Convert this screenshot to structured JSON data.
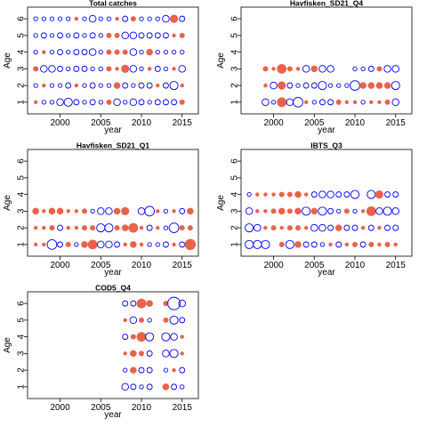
{
  "chart_data": [
    {
      "type": "scatter",
      "title": "Total catches",
      "xlabel": "year",
      "ylabel": "Age",
      "xlim": [
        1996,
        2017
      ],
      "ylim": [
        0.3,
        6.7
      ],
      "xticks": [
        2000,
        2005,
        2010,
        2015
      ],
      "yticks": [
        1,
        2,
        3,
        4,
        5,
        6
      ],
      "years": [
        1997,
        1998,
        1999,
        2000,
        2001,
        2002,
        2003,
        2004,
        2005,
        2006,
        2007,
        2008,
        2009,
        2010,
        2011,
        2012,
        2013,
        2014,
        2015
      ],
      "rows": [
        {
          "age": 1,
          "r": [
            -2,
            2,
            2,
            4,
            5,
            3,
            2,
            3,
            2,
            -3,
            4,
            2,
            4,
            3,
            2,
            3,
            3,
            3,
            -3
          ]
        },
        {
          "age": 2,
          "r": [
            2,
            -2,
            2,
            2,
            3,
            -2,
            2,
            3,
            2,
            2,
            -4,
            3,
            2,
            3,
            3,
            -2,
            3,
            5,
            -2
          ]
        },
        {
          "age": 3,
          "r": [
            -3,
            4,
            4,
            3,
            2,
            3,
            3,
            2,
            2,
            -3,
            -2,
            -5,
            4,
            2,
            -2,
            3,
            2,
            -2,
            4
          ]
        },
        {
          "age": 4,
          "r": [
            2,
            -2,
            2,
            3,
            2,
            3,
            3,
            4,
            2,
            -3,
            -3,
            -3,
            4,
            2,
            -4,
            2,
            2,
            2,
            2
          ]
        },
        {
          "age": 5,
          "r": [
            2,
            3,
            2,
            3,
            2,
            3,
            2,
            3,
            2,
            -3,
            -3,
            4,
            4,
            3,
            3,
            3,
            3,
            -2,
            -3
          ]
        },
        {
          "age": 6,
          "r": [
            2,
            2,
            2,
            2,
            2,
            -2,
            2,
            4,
            2,
            2,
            -2,
            3,
            -3,
            2,
            2,
            2,
            4,
            -5,
            3
          ]
        }
      ]
    },
    {
      "type": "scatter",
      "title": "Havfisken_SD21_Q4",
      "xlabel": "year",
      "ylabel": "Age",
      "xlim": [
        1996,
        2017
      ],
      "ylim": [
        0.3,
        6.7
      ],
      "xticks": [
        2000,
        2005,
        2010,
        2015
      ],
      "yticks": [
        1,
        2,
        3,
        4,
        5,
        6
      ],
      "years": [
        1999,
        2000,
        2001,
        2002,
        2003,
        2004,
        2005,
        2006,
        2007,
        2008,
        2009,
        2010,
        2011,
        2012,
        2013,
        2014,
        2015
      ],
      "rows": [
        {
          "age": 1,
          "r": [
            4,
            2,
            -6,
            4,
            6,
            -2,
            2,
            3,
            3,
            -3,
            -2,
            -2,
            2,
            -2,
            -2,
            -3,
            4
          ]
        },
        {
          "age": 2,
          "r": [
            -2,
            4,
            -5,
            3,
            2,
            3,
            3,
            5,
            2,
            2,
            2,
            6,
            -4,
            -4,
            -4,
            -4,
            5
          ]
        },
        {
          "age": 3,
          "r": [
            -3,
            -2,
            -6,
            -3,
            -2,
            4,
            -4,
            4,
            4,
            0,
            0,
            2,
            2,
            3,
            -3,
            4,
            4
          ]
        }
      ]
    },
    {
      "type": "scatter",
      "title": "Havfisken_SD21_Q1",
      "xlabel": "year",
      "ylabel": "Age",
      "xlim": [
        1996,
        2017
      ],
      "ylim": [
        0.3,
        6.7
      ],
      "xticks": [
        2000,
        2005,
        2010,
        2015
      ],
      "yticks": [
        1,
        2,
        3,
        4,
        5,
        6
      ],
      "years": [
        1997,
        1998,
        1999,
        2000,
        2001,
        2002,
        2003,
        2004,
        2005,
        2006,
        2007,
        2008,
        2009,
        2010,
        2011,
        2012,
        2013,
        2014,
        2015,
        2016
      ],
      "rows": [
        {
          "age": 1,
          "r": [
            -2,
            -2,
            6,
            3,
            -3,
            2,
            -4,
            -6,
            4,
            4,
            3,
            -2,
            -4,
            -2,
            2,
            2,
            3,
            -2,
            3,
            -7
          ]
        },
        {
          "age": 2,
          "r": [
            -2,
            -2,
            -3,
            3,
            -2,
            -2,
            -3,
            -3,
            5,
            5,
            -3,
            -4,
            -6,
            -2,
            3,
            -2,
            2,
            6,
            -3,
            -3
          ]
        },
        {
          "age": 3,
          "r": [
            -4,
            -2,
            -4,
            -4,
            -2,
            -2,
            -3,
            2,
            4,
            4,
            -4,
            -5,
            0,
            4,
            6,
            -2,
            2,
            -2,
            3,
            -4
          ]
        }
      ]
    },
    {
      "type": "scatter",
      "title": "IBTS_Q3",
      "xlabel": "year",
      "ylabel": "Age",
      "xlim": [
        1996,
        2017
      ],
      "ylim": [
        0.3,
        6.7
      ],
      "xticks": [
        2000,
        2005,
        2010,
        2015
      ],
      "yticks": [
        1,
        2,
        3,
        4,
        5,
        6
      ],
      "years": [
        1997,
        1998,
        1999,
        2000,
        2001,
        2002,
        2003,
        2004,
        2005,
        2006,
        2007,
        2008,
        2009,
        2010,
        2011,
        2012,
        2013,
        2014,
        2015
      ],
      "rows": [
        {
          "age": 1,
          "r": [
            5,
            5,
            5,
            0,
            -3,
            5,
            -4,
            3,
            3,
            2,
            -2,
            3,
            -2,
            -3,
            3,
            -3,
            -2,
            -3,
            -2
          ]
        },
        {
          "age": 2,
          "r": [
            5,
            4,
            -2,
            -3,
            -2,
            -3,
            -3,
            -2,
            4,
            4,
            3,
            -4,
            3,
            3,
            -2,
            3,
            -2,
            3,
            3
          ]
        },
        {
          "age": 3,
          "r": [
            4,
            -2,
            -2,
            -3,
            -4,
            -3,
            -4,
            5,
            -4,
            5,
            3,
            2,
            -3,
            2,
            -2,
            -6,
            4,
            5,
            4
          ]
        },
        {
          "age": 4,
          "r": [
            2,
            -2,
            -2,
            -2,
            -3,
            -3,
            -4,
            -2,
            3,
            4,
            4,
            3,
            3,
            5,
            0,
            5,
            -5,
            3,
            3
          ]
        }
      ]
    },
    {
      "type": "scatter",
      "title": "COD5_Q4",
      "xlabel": "year",
      "ylabel": "Age",
      "xlim": [
        1996,
        2017
      ],
      "ylim": [
        0.3,
        6.7
      ],
      "xticks": [
        2000,
        2005,
        2010,
        2015
      ],
      "yticks": [
        1,
        2,
        3,
        4,
        5,
        6
      ],
      "years": [
        2008,
        2009,
        2010,
        2011,
        2012,
        2013,
        2014,
        2015
      ],
      "rows": [
        {
          "age": 1,
          "r": [
            4,
            3,
            2,
            3,
            0,
            -4,
            3,
            2
          ]
        },
        {
          "age": 2,
          "r": [
            2,
            -4,
            3,
            3,
            0,
            2,
            -2,
            3
          ]
        },
        {
          "age": 3,
          "r": [
            -2,
            -4,
            -3,
            3,
            0,
            4,
            5,
            -2
          ]
        },
        {
          "age": 4,
          "r": [
            3,
            -3,
            -6,
            5,
            0,
            5,
            4,
            -2
          ]
        },
        {
          "age": 5,
          "r": [
            -2,
            4,
            -3,
            2,
            0,
            -3,
            5,
            3
          ]
        },
        {
          "age": 6,
          "r": [
            3,
            3,
            -6,
            -4,
            0,
            -3,
            8,
            4
          ]
        }
      ]
    }
  ],
  "style": {
    "positive_color": "#0000ff",
    "negative_color": "#e8634a",
    "axis_color": "#000000"
  }
}
